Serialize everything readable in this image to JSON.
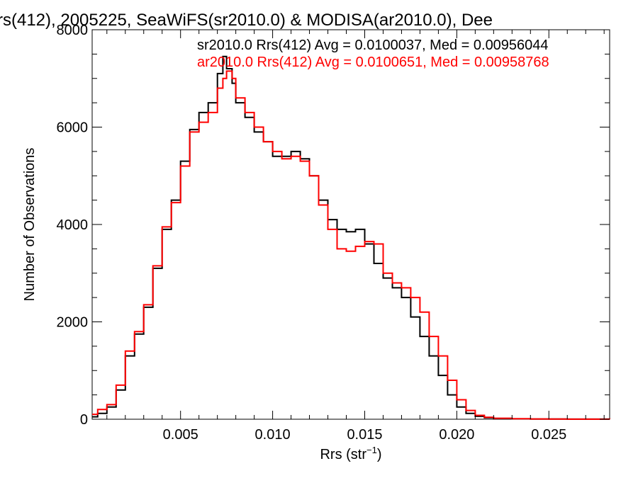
{
  "chart_data": {
    "type": "line",
    "step": true,
    "title": "rs(412), 2005225, SeaWiFS(sr2010.0) & MODISA(ar2010.0), Dee",
    "xlabel": "Rrs (str",
    "xlabel_sup": "−1",
    "xlabel_end": ")",
    "ylabel": "Number of Observations",
    "xlim": [
      0.0002,
      0.0283
    ],
    "ylim": [
      0,
      8000
    ],
    "x_ticks": [
      0.005,
      0.01,
      0.015,
      0.02,
      0.025
    ],
    "x_tick_labels": [
      "0.005",
      "0.010",
      "0.015",
      "0.020",
      "0.025"
    ],
    "y_ticks": [
      0,
      2000,
      4000,
      6000,
      8000
    ],
    "y_tick_labels": [
      "0",
      "2000",
      "4000",
      "6000",
      "8000"
    ],
    "grid": false,
    "legend_position": "top-right",
    "series": [
      {
        "name": "sr2010.0 Rrs(412) Avg = 0.0100037, Med = 0.00956044",
        "color": "#000000",
        "x": [
          0.0002,
          0.0005,
          0.001,
          0.0015,
          0.002,
          0.0025,
          0.003,
          0.0035,
          0.004,
          0.0045,
          0.005,
          0.0055,
          0.006,
          0.0065,
          0.007,
          0.0073,
          0.0075,
          0.0078,
          0.008,
          0.0085,
          0.009,
          0.0095,
          0.01,
          0.0105,
          0.011,
          0.0115,
          0.012,
          0.0125,
          0.013,
          0.0135,
          0.014,
          0.0145,
          0.015,
          0.0155,
          0.016,
          0.0165,
          0.017,
          0.0175,
          0.018,
          0.0185,
          0.019,
          0.0195,
          0.02,
          0.0205,
          0.021,
          0.0215,
          0.022,
          0.023,
          0.024,
          0.025,
          0.026,
          0.027,
          0.0283
        ],
        "y": [
          50,
          120,
          250,
          600,
          1300,
          1750,
          2300,
          3100,
          3900,
          4500,
          5300,
          5950,
          6300,
          6500,
          7100,
          7450,
          7200,
          6900,
          6500,
          6200,
          5900,
          5700,
          5400,
          5400,
          5500,
          5350,
          5000,
          4500,
          4100,
          3900,
          3850,
          3900,
          3600,
          3200,
          2900,
          2700,
          2500,
          2100,
          1700,
          1300,
          900,
          500,
          250,
          120,
          60,
          30,
          15,
          8,
          5,
          3,
          2,
          1,
          0
        ]
      },
      {
        "name": "ar2010.0 Rrs(412) Avg = 0.0100651, Med = 0.00958768",
        "color": "#ff0000",
        "x": [
          0.0002,
          0.0005,
          0.001,
          0.0015,
          0.002,
          0.0025,
          0.003,
          0.0035,
          0.004,
          0.0045,
          0.005,
          0.0055,
          0.006,
          0.0065,
          0.007,
          0.0073,
          0.0075,
          0.0078,
          0.008,
          0.0085,
          0.009,
          0.0095,
          0.01,
          0.0105,
          0.011,
          0.0115,
          0.012,
          0.0125,
          0.013,
          0.0135,
          0.014,
          0.0145,
          0.015,
          0.0155,
          0.016,
          0.0165,
          0.017,
          0.0175,
          0.018,
          0.0185,
          0.019,
          0.0195,
          0.02,
          0.0205,
          0.021,
          0.0215,
          0.022,
          0.023,
          0.024,
          0.025,
          0.026,
          0.027,
          0.0283
        ],
        "y": [
          100,
          200,
          300,
          700,
          1400,
          1800,
          2350,
          3150,
          3950,
          4450,
          5200,
          5900,
          6100,
          6300,
          6800,
          7000,
          7150,
          7000,
          6600,
          6300,
          6000,
          5700,
          5500,
          5350,
          5400,
          5300,
          5000,
          4400,
          3900,
          3500,
          3450,
          3550,
          3650,
          3600,
          3000,
          2800,
          2700,
          2500,
          2200,
          1700,
          1300,
          800,
          400,
          180,
          80,
          40,
          20,
          10,
          6,
          4,
          2,
          1,
          0
        ]
      }
    ]
  }
}
